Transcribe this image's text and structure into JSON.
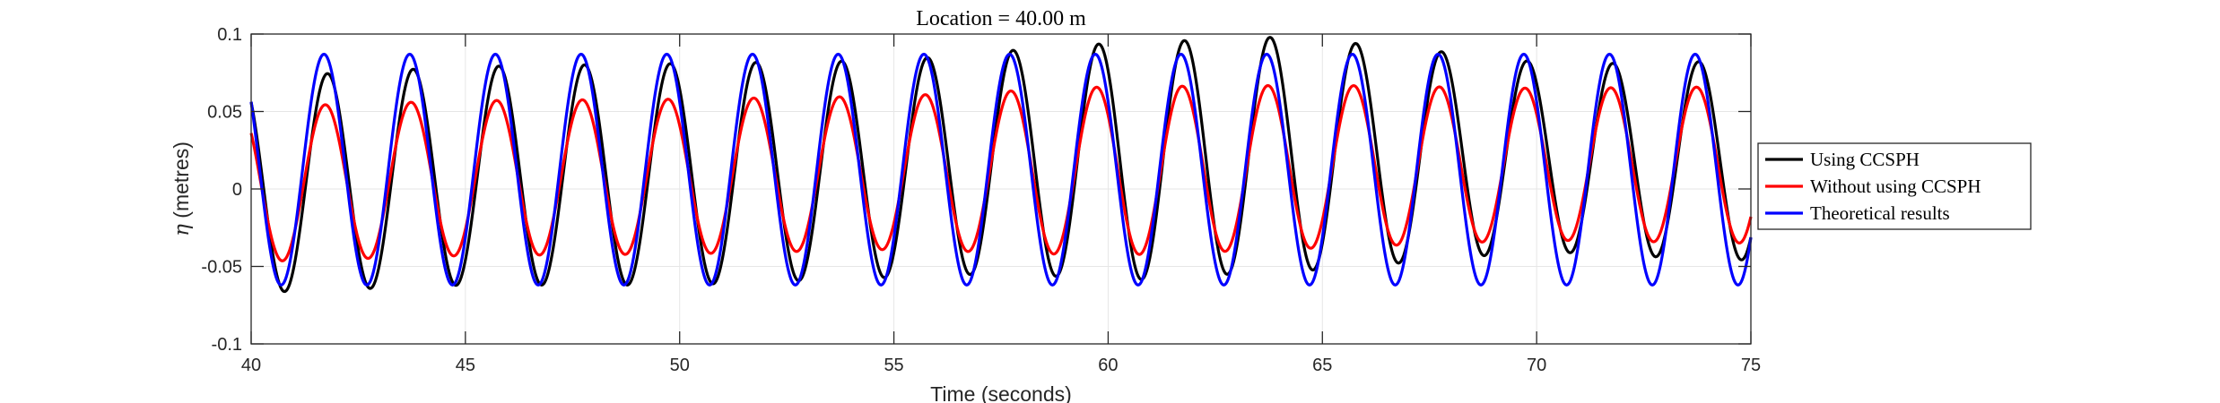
{
  "chart_data": {
    "type": "line",
    "title": "Location = 40.00 m",
    "xlabel": "Time (seconds)",
    "ylabel_symbol": "η",
    "ylabel_text": " (metres)",
    "xlim": [
      40,
      75
    ],
    "ylim": [
      -0.1,
      0.1
    ],
    "xticks": [
      40,
      45,
      50,
      55,
      60,
      65,
      70,
      75
    ],
    "xtick_labels": [
      "40",
      "45",
      "50",
      "55",
      "60",
      "65",
      "70",
      "75"
    ],
    "yticks": [
      -0.1,
      -0.05,
      0,
      0.05,
      0.1
    ],
    "ytick_labels": [
      "-0.1",
      "-0.05",
      "0",
      "0.05",
      "0.1"
    ],
    "grid": true,
    "legend_position": "outside-right",
    "series": [
      {
        "name": "Using CCSPH",
        "color": "#000000",
        "period": 2.0,
        "phase_peak": 41.78,
        "t": [
          40,
          45,
          50,
          55,
          58,
          60,
          62,
          63.7,
          65,
          68,
          70,
          72,
          75
        ],
        "max": [
          0.072,
          0.079,
          0.081,
          0.083,
          0.09,
          0.094,
          0.096,
          0.098,
          0.096,
          0.088,
          0.082,
          0.081,
          0.083
        ],
        "min": [
          -0.067,
          -0.062,
          -0.062,
          -0.057,
          -0.054,
          -0.06,
          -0.056,
          -0.054,
          -0.052,
          -0.045,
          -0.04,
          -0.043,
          -0.046
        ]
      },
      {
        "name": "Without using CCSPH",
        "color": "#ff0000",
        "period": 2.0,
        "phase_peak": 41.73,
        "t": [
          40,
          45,
          50,
          55,
          60,
          65,
          70,
          75
        ],
        "max": [
          0.053,
          0.057,
          0.058,
          0.06,
          0.066,
          0.067,
          0.065,
          0.066
        ],
        "min": [
          -0.047,
          -0.043,
          -0.042,
          -0.039,
          -0.043,
          -0.038,
          -0.033,
          -0.035
        ]
      },
      {
        "name": "Theoretical results",
        "color": "#0000ff",
        "period": 2.0,
        "phase_peak": 41.7,
        "t": [
          40,
          75
        ],
        "max": [
          0.087,
          0.087
        ],
        "min": [
          -0.062,
          -0.062
        ]
      }
    ]
  }
}
